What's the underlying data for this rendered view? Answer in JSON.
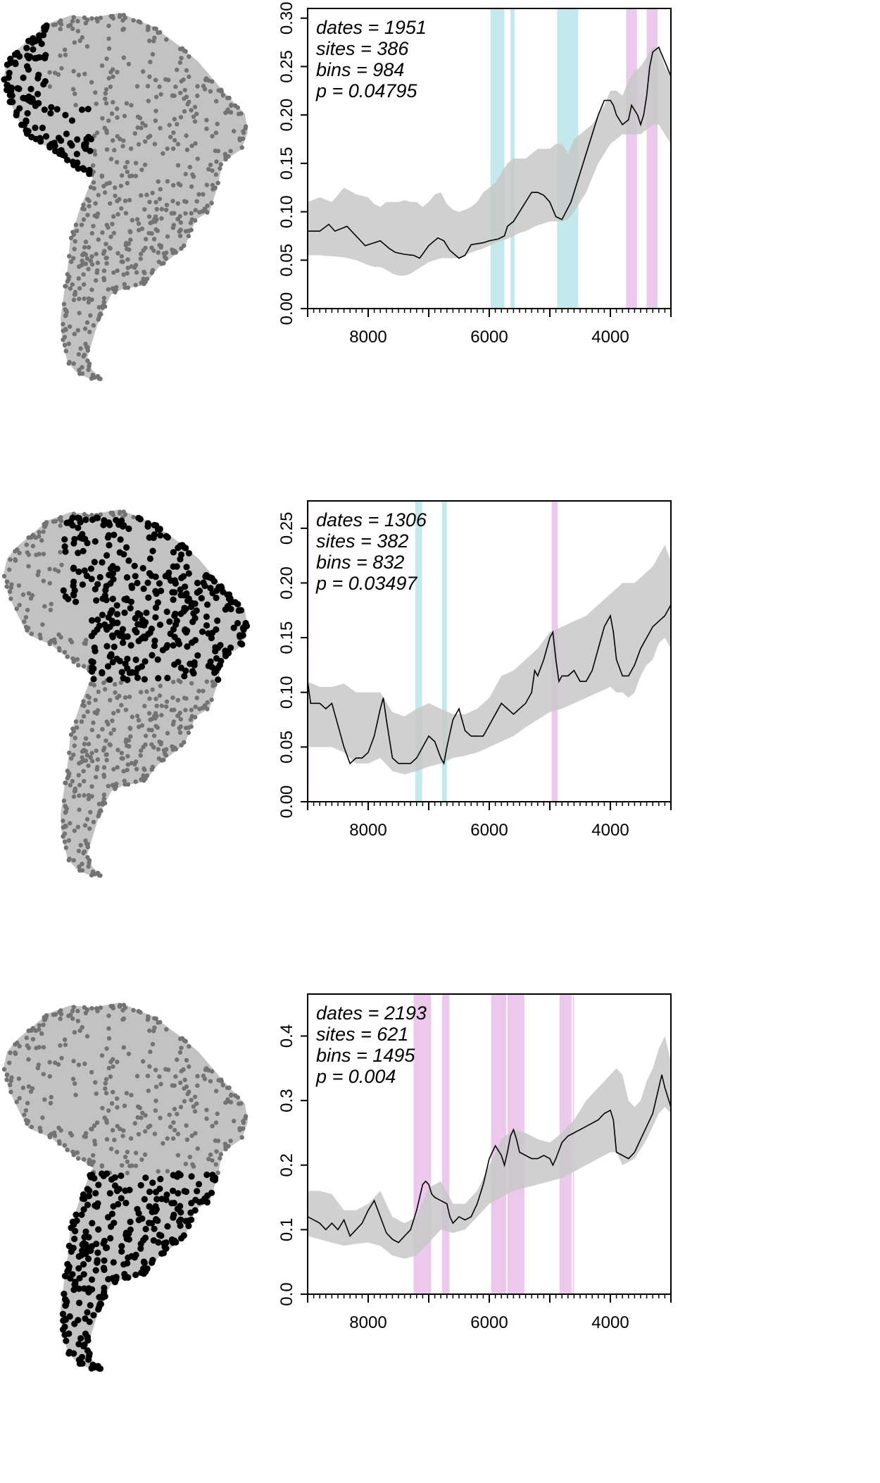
{
  "figure": {
    "colors": {
      "land": "#c2c2c2",
      "site_gray": "#737373",
      "site_black": "#000000",
      "envelope": "#c8c8c8",
      "line": "#000000",
      "positive_band": "#e6b7e6",
      "negative_band": "#afe2e5"
    }
  },
  "chart_data": [
    {
      "type": "area",
      "region_highlighted": "western / Andean coast",
      "stats": {
        "dates": "dates = 1951",
        "sites": "sites = 386",
        "bins": "bins = 984",
        "p": "p = 0.04795"
      },
      "xlim": [
        9000,
        3000
      ],
      "ylim": [
        0,
        0.31
      ],
      "x_ticks": [
        8000,
        6000,
        4000
      ],
      "x_tick_labels": [
        "8000",
        "6000",
        "4000"
      ],
      "y_ticks": [
        0,
        0.05,
        0.1,
        0.15,
        0.2,
        0.25,
        0.3
      ],
      "y_tick_labels": [
        "0.00",
        "0.05",
        "0.10",
        "0.15",
        "0.20",
        "0.25",
        "0.30"
      ],
      "series": [
        {
          "values_x": [
            9000,
            8800,
            8650,
            8550,
            8350,
            8200,
            8050,
            7800,
            7650,
            7550,
            7400,
            7250,
            7150,
            7000,
            6850,
            6750,
            6650,
            6500,
            6400,
            6300,
            6200,
            6100,
            6000,
            5850,
            5750,
            5700,
            5600,
            5500,
            5400,
            5300,
            5200,
            5100,
            5000,
            4900,
            4800,
            4650,
            4500,
            4400,
            4300,
            4200,
            4100,
            4000,
            3950,
            3900,
            3800,
            3700,
            3650,
            3550,
            3500,
            3450,
            3400,
            3350,
            3300,
            3200,
            3100,
            3000
          ],
          "values_y": [
            0.08,
            0.08,
            0.087,
            0.08,
            0.085,
            0.075,
            0.065,
            0.07,
            0.062,
            0.058,
            0.056,
            0.055,
            0.052,
            0.065,
            0.073,
            0.07,
            0.06,
            0.052,
            0.055,
            0.066,
            0.067,
            0.068,
            0.07,
            0.072,
            0.075,
            0.085,
            0.09,
            0.1,
            0.11,
            0.12,
            0.12,
            0.117,
            0.11,
            0.095,
            0.092,
            0.11,
            0.14,
            0.16,
            0.18,
            0.2,
            0.215,
            0.215,
            0.21,
            0.2,
            0.19,
            0.195,
            0.21,
            0.2,
            0.19,
            0.2,
            0.22,
            0.25,
            0.265,
            0.27,
            0.255,
            0.24
          ]
        }
      ],
      "envelope": {
        "x": [
          9000,
          8800,
          8600,
          8400,
          8200,
          8000,
          7900,
          7800,
          7700,
          7600,
          7500,
          7400,
          7300,
          7200,
          7100,
          7000,
          6900,
          6800,
          6700,
          6600,
          6500,
          6400,
          6300,
          6200,
          6100,
          6000,
          5900,
          5800,
          5700,
          5600,
          5500,
          5400,
          5300,
          5200,
          5100,
          5000,
          4900,
          4800,
          4700,
          4600,
          4500,
          4400,
          4300,
          4200,
          4100,
          4000,
          3900,
          3800,
          3700,
          3600,
          3500,
          3400,
          3300,
          3200,
          3100,
          3000
        ],
        "lower": [
          0.055,
          0.055,
          0.054,
          0.053,
          0.05,
          0.045,
          0.043,
          0.043,
          0.04,
          0.036,
          0.034,
          0.034,
          0.036,
          0.04,
          0.044,
          0.048,
          0.05,
          0.052,
          0.052,
          0.052,
          0.052,
          0.055,
          0.058,
          0.06,
          0.062,
          0.065,
          0.068,
          0.07,
          0.072,
          0.075,
          0.078,
          0.08,
          0.083,
          0.086,
          0.088,
          0.09,
          0.09,
          0.09,
          0.092,
          0.1,
          0.11,
          0.12,
          0.135,
          0.15,
          0.16,
          0.17,
          0.175,
          0.18,
          0.18,
          0.18,
          0.18,
          0.185,
          0.19,
          0.19,
          0.18,
          0.17
        ],
        "upper": [
          0.11,
          0.115,
          0.11,
          0.125,
          0.118,
          0.115,
          0.108,
          0.105,
          0.11,
          0.11,
          0.11,
          0.112,
          0.11,
          0.11,
          0.105,
          0.11,
          0.118,
          0.12,
          0.108,
          0.102,
          0.1,
          0.102,
          0.105,
          0.11,
          0.12,
          0.125,
          0.13,
          0.14,
          0.15,
          0.155,
          0.155,
          0.155,
          0.16,
          0.165,
          0.165,
          0.165,
          0.17,
          0.17,
          0.16,
          0.175,
          0.18,
          0.185,
          0.19,
          0.2,
          0.21,
          0.225,
          0.225,
          0.22,
          0.235,
          0.245,
          0.25,
          0.26,
          0.27,
          0.27,
          0.25,
          0.24
        ]
      },
      "bands": [
        {
          "kind": "negative",
          "from": 5980,
          "to": 5750
        },
        {
          "kind": "negative",
          "from": 5650,
          "to": 5580
        },
        {
          "kind": "negative",
          "from": 4880,
          "to": 4530
        },
        {
          "kind": "positive",
          "from": 3740,
          "to": 3560
        },
        {
          "kind": "positive",
          "from": 3400,
          "to": 3220
        }
      ]
    },
    {
      "type": "area",
      "region_highlighted": "northern / eastern interior",
      "stats": {
        "dates": "dates = 1306",
        "sites": "sites = 382",
        "bins": "bins = 832",
        "p": "p = 0.03497"
      },
      "xlim": [
        9000,
        3000
      ],
      "ylim": [
        0,
        0.275
      ],
      "x_ticks": [
        8000,
        6000,
        4000
      ],
      "x_tick_labels": [
        "8000",
        "6000",
        "4000"
      ],
      "y_ticks": [
        0,
        0.05,
        0.1,
        0.15,
        0.2,
        0.25
      ],
      "y_tick_labels": [
        "0.00",
        "0.05",
        "0.10",
        "0.15",
        "0.20",
        "0.25"
      ],
      "series": [
        {
          "values_x": [
            9000,
            8950,
            8900,
            8800,
            8700,
            8600,
            8500,
            8400,
            8300,
            8200,
            8100,
            8000,
            7900,
            7800,
            7750,
            7700,
            7600,
            7500,
            7400,
            7300,
            7200,
            7100,
            7000,
            6900,
            6800,
            6750,
            6700,
            6600,
            6500,
            6400,
            6300,
            6200,
            6100,
            6000,
            5900,
            5800,
            5700,
            5600,
            5500,
            5400,
            5300,
            5250,
            5200,
            5100,
            5000,
            4950,
            4900,
            4850,
            4800,
            4700,
            4600,
            4500,
            4400,
            4300,
            4200,
            4100,
            4000,
            3950,
            3900,
            3800,
            3700,
            3600,
            3500,
            3400,
            3300,
            3200,
            3100,
            3000
          ],
          "values_y": [
            0.11,
            0.09,
            0.09,
            0.09,
            0.085,
            0.09,
            0.07,
            0.05,
            0.035,
            0.04,
            0.04,
            0.045,
            0.06,
            0.085,
            0.095,
            0.075,
            0.04,
            0.035,
            0.035,
            0.035,
            0.04,
            0.05,
            0.06,
            0.055,
            0.04,
            0.035,
            0.05,
            0.075,
            0.085,
            0.065,
            0.06,
            0.06,
            0.06,
            0.07,
            0.08,
            0.09,
            0.085,
            0.08,
            0.085,
            0.09,
            0.1,
            0.12,
            0.115,
            0.13,
            0.15,
            0.155,
            0.13,
            0.11,
            0.115,
            0.115,
            0.12,
            0.11,
            0.11,
            0.12,
            0.14,
            0.16,
            0.17,
            0.155,
            0.13,
            0.115,
            0.115,
            0.125,
            0.14,
            0.15,
            0.16,
            0.165,
            0.17,
            0.18
          ]
        }
      ],
      "envelope": {
        "x": [
          9000,
          8800,
          8600,
          8400,
          8200,
          8000,
          7800,
          7600,
          7400,
          7200,
          7000,
          6800,
          6600,
          6400,
          6200,
          6000,
          5800,
          5600,
          5400,
          5200,
          5000,
          4800,
          4600,
          4400,
          4200,
          4000,
          3900,
          3800,
          3700,
          3600,
          3500,
          3400,
          3300,
          3200,
          3100,
          3000
        ],
        "lower": [
          0.05,
          0.05,
          0.05,
          0.045,
          0.035,
          0.035,
          0.04,
          0.028,
          0.025,
          0.028,
          0.032,
          0.035,
          0.04,
          0.042,
          0.045,
          0.05,
          0.055,
          0.06,
          0.068,
          0.075,
          0.082,
          0.085,
          0.09,
          0.095,
          0.1,
          0.105,
          0.1,
          0.1,
          0.095,
          0.1,
          0.115,
          0.125,
          0.13,
          0.145,
          0.15,
          0.14
        ],
        "upper": [
          0.11,
          0.105,
          0.105,
          0.108,
          0.1,
          0.1,
          0.1,
          0.082,
          0.078,
          0.085,
          0.09,
          0.085,
          0.08,
          0.08,
          0.085,
          0.095,
          0.115,
          0.12,
          0.13,
          0.14,
          0.155,
          0.16,
          0.165,
          0.17,
          0.18,
          0.19,
          0.195,
          0.2,
          0.2,
          0.2,
          0.205,
          0.21,
          0.215,
          0.225,
          0.235,
          0.22
        ]
      },
      "bands": [
        {
          "kind": "positive",
          "from": 9000,
          "to": 8980
        },
        {
          "kind": "negative",
          "from": 7220,
          "to": 7110
        },
        {
          "kind": "negative",
          "from": 6780,
          "to": 6700
        },
        {
          "kind": "positive",
          "from": 4970,
          "to": 4870
        }
      ]
    },
    {
      "type": "area",
      "region_highlighted": "southern cone",
      "stats": {
        "dates": "dates = 2193",
        "sites": "sites = 621",
        "bins": "bins = 1495",
        "p": "p = 0.004"
      },
      "xlim": [
        9000,
        3000
      ],
      "ylim": [
        0,
        0.465
      ],
      "x_ticks": [
        8000,
        6000,
        4000
      ],
      "x_tick_labels": [
        "8000",
        "6000",
        "4000"
      ],
      "y_ticks": [
        0,
        0.1,
        0.2,
        0.3,
        0.4
      ],
      "y_tick_labels": [
        "0.0",
        "0.1",
        "0.2",
        "0.3",
        "0.4"
      ],
      "series": [
        {
          "values_x": [
            9000,
            8900,
            8800,
            8700,
            8600,
            8500,
            8400,
            8300,
            8200,
            8100,
            8000,
            7900,
            7800,
            7700,
            7600,
            7500,
            7400,
            7300,
            7200,
            7100,
            7050,
            7000,
            6950,
            6900,
            6800,
            6700,
            6650,
            6600,
            6500,
            6400,
            6300,
            6200,
            6100,
            6000,
            5900,
            5800,
            5750,
            5700,
            5650,
            5600,
            5550,
            5500,
            5400,
            5300,
            5200,
            5100,
            5000,
            4950,
            4900,
            4800,
            4700,
            4600,
            4500,
            4400,
            4300,
            4200,
            4100,
            4000,
            3950,
            3900,
            3800,
            3700,
            3600,
            3500,
            3400,
            3300,
            3200,
            3150,
            3100,
            3000
          ],
          "values_y": [
            0.12,
            0.115,
            0.11,
            0.1,
            0.11,
            0.1,
            0.115,
            0.09,
            0.1,
            0.11,
            0.13,
            0.145,
            0.12,
            0.095,
            0.085,
            0.08,
            0.09,
            0.1,
            0.13,
            0.17,
            0.175,
            0.17,
            0.155,
            0.15,
            0.145,
            0.14,
            0.12,
            0.11,
            0.12,
            0.115,
            0.12,
            0.14,
            0.17,
            0.21,
            0.23,
            0.215,
            0.2,
            0.22,
            0.245,
            0.255,
            0.24,
            0.22,
            0.215,
            0.21,
            0.21,
            0.215,
            0.21,
            0.2,
            0.21,
            0.235,
            0.245,
            0.25,
            0.255,
            0.26,
            0.265,
            0.27,
            0.28,
            0.285,
            0.27,
            0.22,
            0.215,
            0.21,
            0.22,
            0.24,
            0.26,
            0.28,
            0.32,
            0.34,
            0.32,
            0.29
          ]
        }
      ],
      "envelope": {
        "x": [
          9000,
          8800,
          8600,
          8400,
          8200,
          8000,
          7800,
          7600,
          7400,
          7200,
          7000,
          6800,
          6600,
          6400,
          6200,
          6000,
          5800,
          5600,
          5400,
          5200,
          5000,
          4800,
          4600,
          4400,
          4200,
          4000,
          3900,
          3800,
          3700,
          3600,
          3500,
          3400,
          3300,
          3200,
          3100,
          3000
        ],
        "lower": [
          0.09,
          0.085,
          0.08,
          0.075,
          0.078,
          0.08,
          0.075,
          0.06,
          0.055,
          0.06,
          0.08,
          0.1,
          0.095,
          0.1,
          0.12,
          0.14,
          0.15,
          0.16,
          0.165,
          0.17,
          0.175,
          0.18,
          0.19,
          0.2,
          0.21,
          0.22,
          0.22,
          0.2,
          0.205,
          0.21,
          0.225,
          0.24,
          0.26,
          0.28,
          0.29,
          0.28
        ],
        "upper": [
          0.16,
          0.16,
          0.155,
          0.13,
          0.13,
          0.14,
          0.16,
          0.12,
          0.11,
          0.12,
          0.165,
          0.175,
          0.14,
          0.14,
          0.16,
          0.2,
          0.24,
          0.255,
          0.25,
          0.24,
          0.235,
          0.25,
          0.27,
          0.3,
          0.32,
          0.34,
          0.35,
          0.34,
          0.3,
          0.29,
          0.3,
          0.33,
          0.35,
          0.38,
          0.4,
          0.36
        ]
      },
      "bands": [
        {
          "kind": "positive",
          "from": 7250,
          "to": 6960
        },
        {
          "kind": "positive",
          "from": 6780,
          "to": 6660
        },
        {
          "kind": "positive",
          "from": 5970,
          "to": 5720
        },
        {
          "kind": "positive",
          "from": 5700,
          "to": 5420
        },
        {
          "kind": "positive",
          "from": 4840,
          "to": 4640
        },
        {
          "kind": "positive",
          "from": 4620,
          "to": 4600
        }
      ]
    }
  ]
}
